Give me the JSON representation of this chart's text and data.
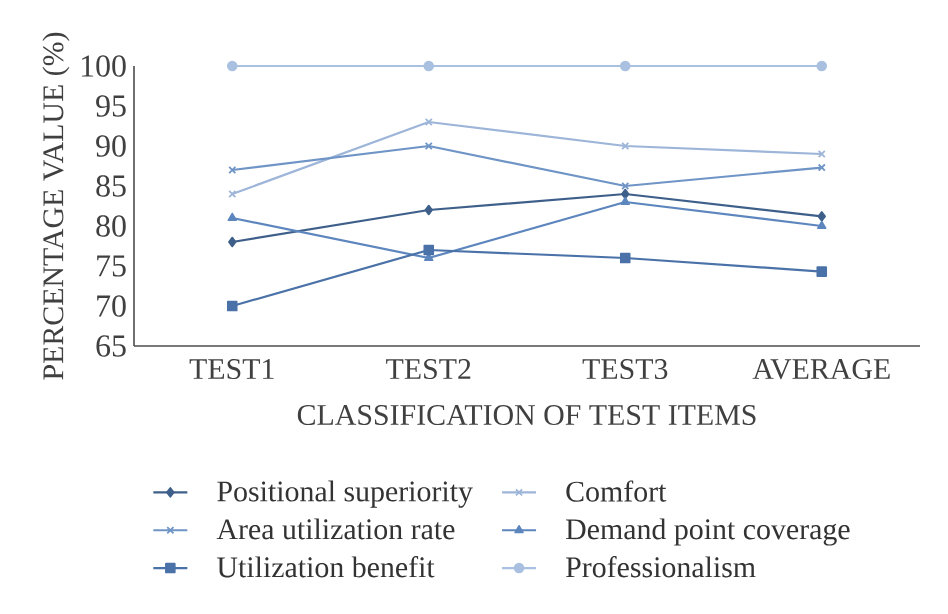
{
  "chart_data": {
    "type": "line",
    "xlabel": "CLASSIFICATION OF TEST ITEMS",
    "ylabel": "PERCENTAGE VALUE (%)",
    "categories": [
      "TEST1",
      "TEST2",
      "TEST3",
      "AVERAGE"
    ],
    "ylim": [
      65,
      100
    ],
    "yticks": [
      65,
      70,
      75,
      80,
      85,
      90,
      95,
      100
    ],
    "grid": false,
    "legend": "bottom",
    "line_style": "solid",
    "series": [
      {
        "name": "Positional superiority",
        "color": "#3e5f8a",
        "marker": "diamond",
        "values": [
          78,
          82,
          84,
          81.2
        ]
      },
      {
        "name": "Comfort",
        "color": "#9db5d8",
        "marker": "cross",
        "values": [
          84,
          93,
          90,
          89
        ]
      },
      {
        "name": "Area utilization rate",
        "color": "#6f94c6",
        "marker": "cross",
        "values": [
          87,
          90,
          85,
          87.3
        ]
      },
      {
        "name": "Demand point coverage",
        "color": "#5c86bd",
        "marker": "triangle",
        "values": [
          81,
          76,
          83,
          80
        ]
      },
      {
        "name": "Utilization benefit",
        "color": "#4a72a8",
        "marker": "square",
        "values": [
          70,
          77,
          76,
          74.3
        ]
      },
      {
        "name": "Professionalism",
        "color": "#a9c0e0",
        "marker": "circle",
        "values": [
          100,
          100,
          100,
          100
        ]
      }
    ]
  }
}
